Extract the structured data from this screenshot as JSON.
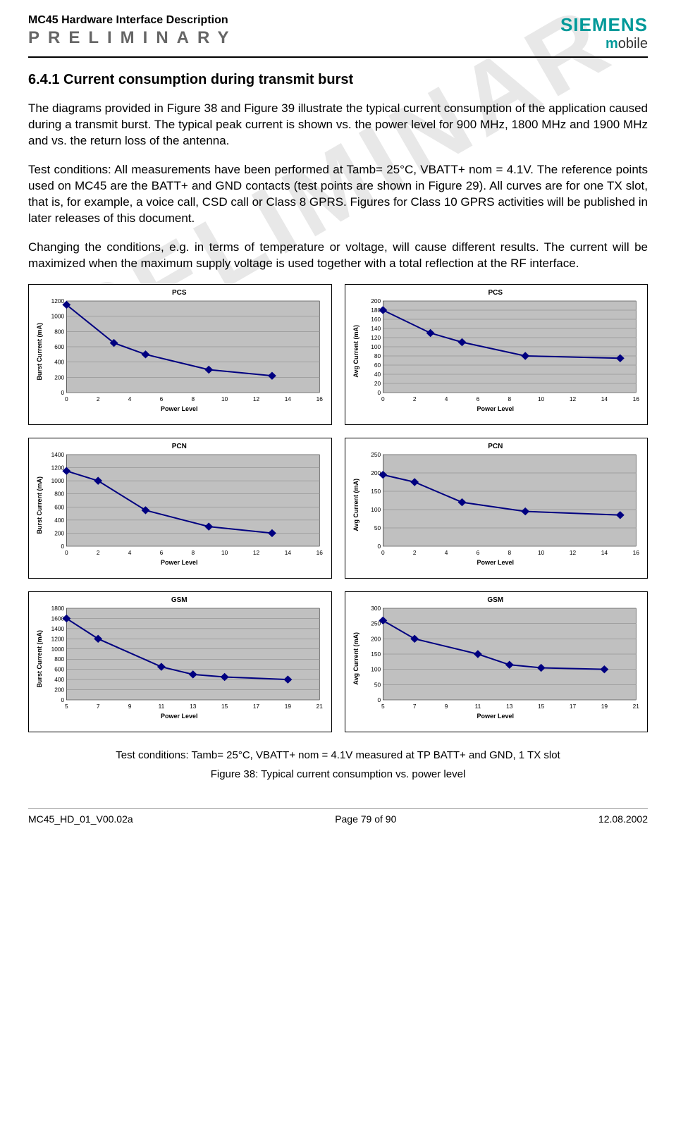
{
  "header": {
    "doc_title": "MC45 Hardware Interface Description",
    "preliminary": "PRELIMINARY",
    "logo_top": "SIEMENS",
    "logo_bottom_m": "m",
    "logo_bottom_rest": "obile"
  },
  "watermark": "RELIMINAR",
  "section": {
    "number_title": "6.4.1 Current consumption during transmit burst",
    "para1": "The diagrams provided in Figure 38 and Figure 39 illustrate the typical current consumption of the application caused during a transmit burst. The typical peak current is shown vs. the power level for 900 MHz, 1800 MHz and 1900 MHz and vs. the return loss of the antenna.",
    "para2": "Test conditions: All measurements have been performed at Tamb= 25°C, VBATT+ nom = 4.1V. The reference points used on MC45 are the BATT+ and GND contacts (test points are shown in Figure 29). All curves are for one TX slot, that is, for example, a voice call, CSD call or Class 8 GPRS. Figures for Class 10 GPRS activities will be published in later releases of this document.",
    "para3": "Changing the conditions, e.g. in terms of temperature or voltage, will cause different results. The current will be maximized when the maximum supply voltage is used together with a total reflection at the RF interface."
  },
  "charts": {
    "plot_area_bg": "#c0c0c0",
    "grid_color": "#808080",
    "line_color": "#000080",
    "marker_fill": "#000080",
    "marker_size": 5,
    "line_width": 2,
    "axis_font_size": 8,
    "xlabel": "Power Level",
    "pcs_burst": {
      "title": "PCS",
      "ylabel": "Burst Current (mA)",
      "x": [
        0,
        3,
        5,
        9,
        13
      ],
      "y": [
        1150,
        650,
        500,
        300,
        220
      ],
      "xlim": [
        0,
        16
      ],
      "xtick_step": 2,
      "ylim": [
        0,
        1200
      ],
      "ytick_step": 200
    },
    "pcs_avg": {
      "title": "PCS",
      "ylabel": "Avg Current (mA)",
      "x": [
        0,
        3,
        5,
        9,
        15
      ],
      "y": [
        180,
        130,
        110,
        80,
        75
      ],
      "xlim": [
        0,
        16
      ],
      "xtick_step": 2,
      "ylim": [
        0,
        200
      ],
      "ytick_step": 20
    },
    "pcn_burst": {
      "title": "PCN",
      "ylabel": "Burst Current (mA)",
      "x": [
        0,
        2,
        5,
        9,
        13
      ],
      "y": [
        1150,
        1000,
        550,
        300,
        200
      ],
      "xlim": [
        0,
        16
      ],
      "xtick_step": 2,
      "ylim": [
        0,
        1400
      ],
      "ytick_step": 200
    },
    "pcn_avg": {
      "title": "PCN",
      "ylabel": "Avg Current (mA)",
      "x": [
        0,
        2,
        5,
        9,
        15
      ],
      "y": [
        195,
        175,
        120,
        95,
        85
      ],
      "xlim": [
        0,
        16
      ],
      "xtick_step": 2,
      "ylim": [
        0,
        250
      ],
      "ytick_step": 50
    },
    "gsm_burst": {
      "title": "GSM",
      "ylabel": "Burst Current (mA)",
      "x": [
        5,
        7,
        11,
        13,
        15,
        19
      ],
      "y": [
        1600,
        1200,
        650,
        500,
        450,
        400
      ],
      "xlim": [
        5,
        21
      ],
      "xtick_step": 2,
      "ylim": [
        0,
        1800
      ],
      "ytick_step": 200
    },
    "gsm_avg": {
      "title": "GSM",
      "ylabel": "Avg Current (mA)",
      "x": [
        5,
        7,
        11,
        13,
        15,
        19
      ],
      "y": [
        260,
        200,
        150,
        115,
        105,
        100
      ],
      "xlim": [
        5,
        21
      ],
      "xtick_step": 2,
      "ylim": [
        0,
        300
      ],
      "ytick_step": 50
    }
  },
  "caption": {
    "conditions": "Test conditions: Tamb= 25°C, VBATT+ nom = 4.1V measured at TP BATT+ and GND, 1 TX slot",
    "figure": "Figure 38: Typical current consumption vs. power level"
  },
  "footer": {
    "left": "MC45_HD_01_V00.02a",
    "center": "Page 79 of 90",
    "right": "12.08.2002"
  }
}
